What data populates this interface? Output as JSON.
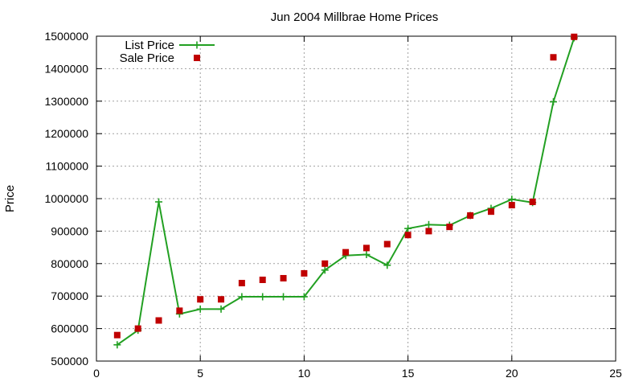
{
  "chart_data": {
    "type": "line",
    "title": "Jun 2004 Millbrae Home Prices",
    "xlabel": "",
    "ylabel": "Price",
    "xlim": [
      0,
      25
    ],
    "ylim": [
      500000,
      1500000
    ],
    "x_ticks": [
      "0",
      "5",
      "10",
      "15",
      "20",
      "25"
    ],
    "y_ticks": [
      "500000",
      "600000",
      "700000",
      "800000",
      "900000",
      "1000000",
      "1100000",
      "1200000",
      "1300000",
      "1400000",
      "1500000"
    ],
    "grid": true,
    "legend_position": "top-left",
    "series": [
      {
        "name": "List Price",
        "style": "line-with-plus-markers",
        "color": "#22a022",
        "x": [
          1,
          2,
          3,
          4,
          5,
          6,
          7,
          8,
          9,
          10,
          11,
          12,
          13,
          14,
          15,
          16,
          17,
          18,
          19,
          20,
          21,
          22,
          23
        ],
        "values": [
          550000,
          595000,
          990000,
          645000,
          660000,
          660000,
          698000,
          698000,
          698000,
          698000,
          780000,
          825000,
          828000,
          795000,
          908000,
          920000,
          918000,
          948000,
          970000,
          998000,
          988000,
          1298000,
          1495000
        ]
      },
      {
        "name": "Sale Price",
        "style": "square-markers",
        "color": "#c00000",
        "x": [
          1,
          2,
          3,
          4,
          5,
          6,
          7,
          8,
          9,
          10,
          11,
          12,
          13,
          14,
          15,
          16,
          17,
          18,
          19,
          20,
          21,
          22,
          23
        ],
        "values": [
          580000,
          600000,
          625000,
          655000,
          690000,
          690000,
          740000,
          750000,
          755000,
          770000,
          800000,
          835000,
          848000,
          860000,
          888000,
          900000,
          913000,
          948000,
          960000,
          980000,
          990000,
          1435000,
          1498000
        ]
      }
    ]
  }
}
